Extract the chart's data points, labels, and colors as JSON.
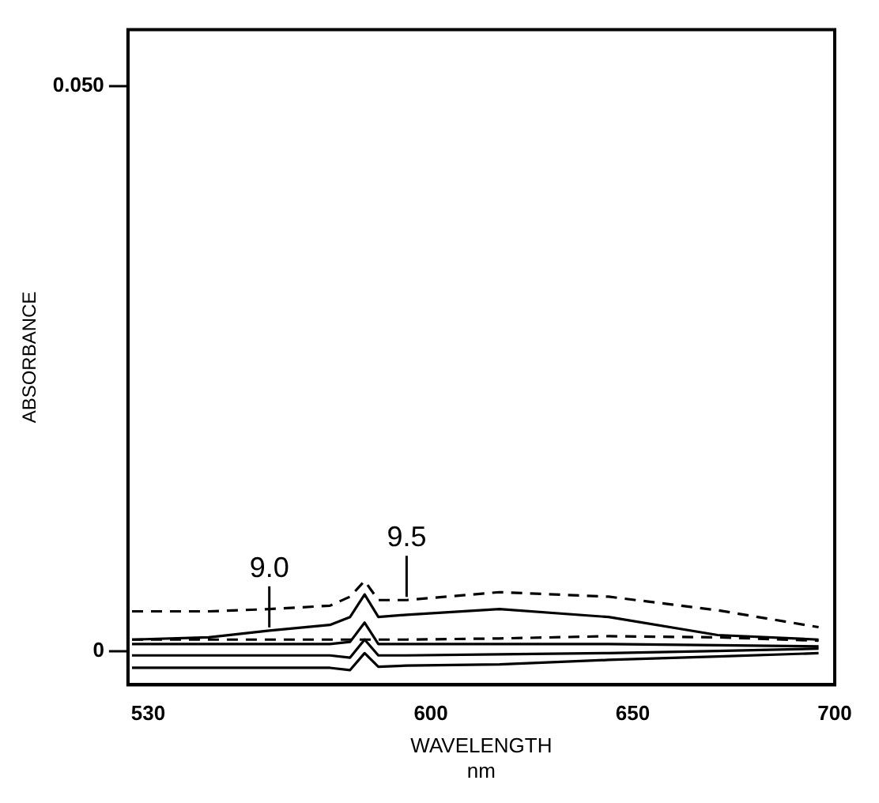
{
  "chart_data": {
    "type": "line",
    "xlabel": "WAVELENGTH\nnm",
    "ylabel": "ABSORBANCE",
    "x": [
      526,
      545,
      560,
      575,
      580,
      583.6,
      587,
      594,
      617,
      644,
      671,
      696
    ],
    "xlim": [
      525,
      700
    ],
    "xticks": [
      530,
      600,
      650,
      700
    ],
    "ylim": [
      -0.003,
      0.055
    ],
    "yticks": [
      0,
      {
        "value": 0.05,
        "label": "0.050"
      }
    ],
    "grid": false,
    "legend": false,
    "marker": "none",
    "series": [
      {
        "name": "9.5",
        "color": "#000000",
        "line_style": "dashed",
        "values": [
          0.0035,
          0.0035,
          0.0037,
          0.004,
          0.0048,
          0.0062,
          0.0045,
          0.0045,
          0.0052,
          0.0048,
          0.0036,
          0.0021
        ]
      },
      {
        "name": "9.0",
        "color": "#000000",
        "line_style": "solid",
        "values": [
          0.001,
          0.0012,
          0.0018,
          0.0023,
          0.003,
          0.005,
          0.003,
          0.0032,
          0.0037,
          0.003,
          0.0014,
          0.001
        ]
      },
      {
        "color": "#000000",
        "line_style": "dashed",
        "values": [
          0.001,
          0.001,
          0.001,
          0.001,
          0.001,
          0.001,
          0.001,
          0.001,
          0.0011,
          0.0013,
          0.0012,
          0.0009
        ]
      },
      {
        "color": "#000000",
        "line_style": "solid",
        "values": [
          0.0006,
          0.0006,
          0.0006,
          0.0006,
          0.0008,
          0.0025,
          0.0006,
          0.0006,
          0.0006,
          0.0006,
          0.0005,
          0.0004
        ]
      },
      {
        "color": "#000000",
        "line_style": "solid",
        "values": [
          -0.0004,
          -0.0004,
          -0.0004,
          -0.0004,
          -0.0006,
          0.001,
          -0.0004,
          -0.0004,
          -0.0003,
          -0.0002,
          0,
          0.0002
        ]
      },
      {
        "color": "#000000",
        "line_style": "solid",
        "values": [
          -0.0015,
          -0.0015,
          -0.0015,
          -0.0015,
          -0.0017,
          -0.0002,
          -0.0014,
          -0.0013,
          -0.0012,
          -0.0008,
          -0.0005,
          -0.0002
        ]
      }
    ]
  }
}
